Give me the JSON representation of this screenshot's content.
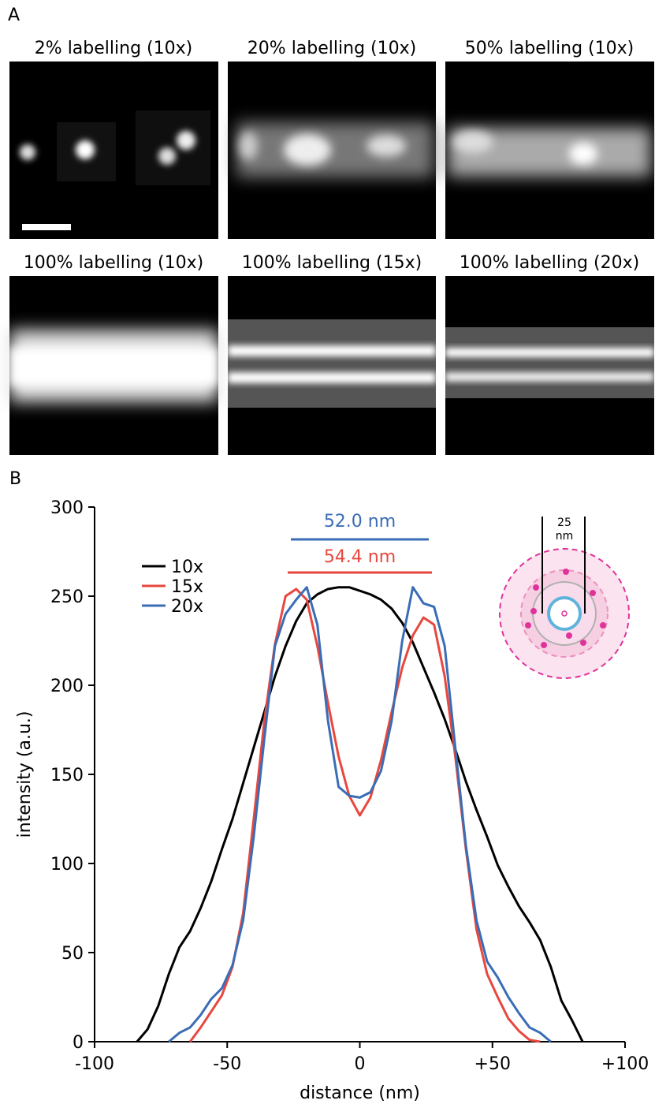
{
  "panel_a": {
    "label": "A",
    "images": [
      {
        "title": "2% labelling (10x)"
      },
      {
        "title": "20% labelling (10x)"
      },
      {
        "title": "50% labelling (10x)"
      },
      {
        "title": "100% labelling (10x)"
      },
      {
        "title": "100% labelling (15x)"
      },
      {
        "title": "100% labelling (20x)"
      }
    ]
  },
  "panel_b_label": "B",
  "inset": {
    "label_value": "25",
    "label_unit": "nm"
  },
  "chart_data": {
    "type": "line",
    "xlabel": "distance (nm)",
    "ylabel": "intensity (a.u.)",
    "xlim": [
      -100,
      100
    ],
    "ylim": [
      0,
      300
    ],
    "xticks": [
      -100,
      -50,
      0,
      {
        "value": 50,
        "label": "+50"
      },
      {
        "value": 100,
        "label": "+100"
      }
    ],
    "yticks": [
      0,
      50,
      100,
      150,
      200,
      250,
      300
    ],
    "legend": "upper left",
    "x": [
      -84,
      -80,
      -76,
      -72,
      -68,
      -64,
      -60,
      -56,
      -52,
      -48,
      -44,
      -40,
      -36,
      -32,
      -28,
      -24,
      -20,
      -16,
      -12,
      -8,
      -4,
      0,
      4,
      8,
      12,
      16,
      20,
      24,
      28,
      32,
      36,
      40,
      44,
      48,
      52,
      56,
      60,
      64,
      68,
      72,
      76,
      80,
      84
    ],
    "series": [
      {
        "name": "10x",
        "color": "#000000",
        "values": [
          0,
          7,
          20,
          38,
          53,
          62,
          75,
          90,
          108,
          125,
          145,
          165,
          185,
          205,
          222,
          236,
          246,
          251,
          254,
          255,
          255,
          253,
          251,
          248,
          243,
          235,
          224,
          210,
          196,
          181,
          164,
          146,
          130,
          115,
          99,
          87,
          76,
          67,
          57,
          42,
          23,
          12,
          0
        ]
      },
      {
        "name": "15x",
        "color": "#e8473e",
        "values": [
          null,
          null,
          null,
          null,
          null,
          0,
          8,
          17,
          26,
          42,
          72,
          125,
          180,
          223,
          250,
          254,
          248,
          222,
          190,
          160,
          138,
          127,
          137,
          158,
          185,
          210,
          228,
          238,
          234,
          205,
          160,
          108,
          63,
          38,
          25,
          13,
          6,
          1,
          0,
          null,
          null,
          null,
          null
        ]
      },
      {
        "name": "20x",
        "color": "#3a6db5",
        "values": [
          null,
          null,
          null,
          0,
          5,
          8,
          15,
          24,
          30,
          43,
          68,
          115,
          170,
          222,
          240,
          248,
          255,
          234,
          180,
          143,
          138,
          137,
          140,
          152,
          180,
          225,
          255,
          246,
          244,
          222,
          165,
          110,
          68,
          45,
          36,
          25,
          16,
          8,
          5,
          0,
          null,
          null,
          null
        ]
      }
    ],
    "annotations": [
      {
        "label": "52.0 nm",
        "value": 52.0,
        "color": "#3a6db5"
      },
      {
        "label": "54.4 nm",
        "value": 54.4,
        "color": "#e8473e"
      }
    ]
  }
}
